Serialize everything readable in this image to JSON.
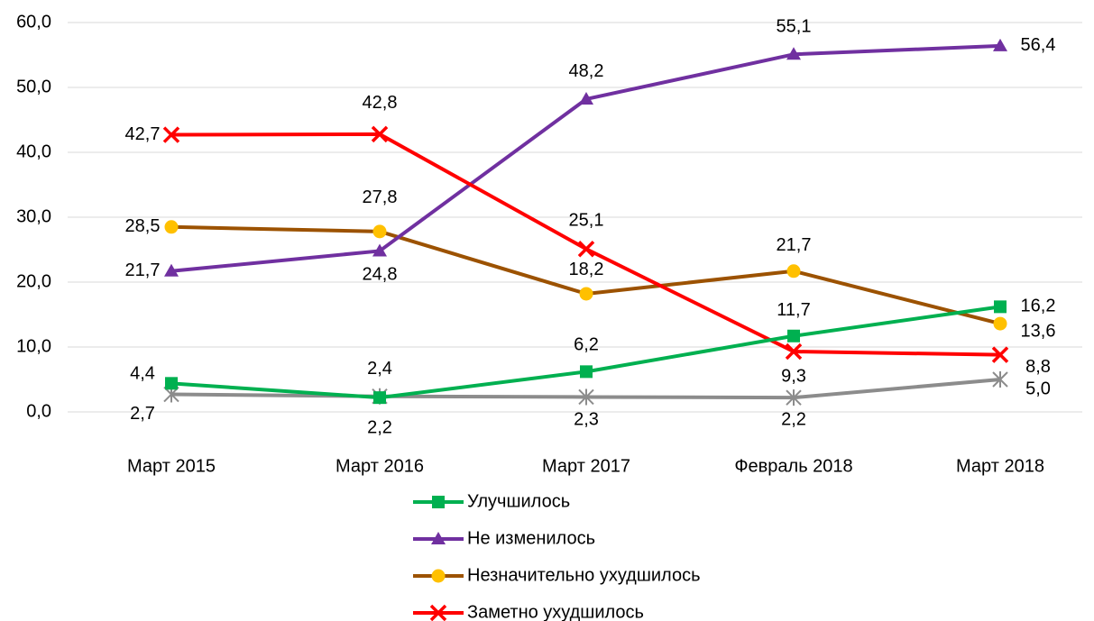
{
  "chart_data": {
    "type": "line",
    "categories": [
      "Март 2015",
      "Март 2016",
      "Март 2017",
      "Февраль 2018",
      "Март 2018"
    ],
    "series": [
      {
        "name": "Улучшилось",
        "color": "#00b050",
        "marker": "square",
        "marker_color": "#00b050",
        "values": [
          4.4,
          2.2,
          6.2,
          11.7,
          16.2
        ],
        "value_labels": [
          "4,4",
          "2,2",
          "6,2",
          "11,7",
          "16,2"
        ]
      },
      {
        "name": "Не изменилось",
        "color": "#7030a0",
        "marker": "triangle",
        "marker_color": "#7030a0",
        "values": [
          21.7,
          24.8,
          48.2,
          55.1,
          56.4
        ],
        "value_labels": [
          "21,7",
          "24,8",
          "48,2",
          "55,1",
          "56,4"
        ]
      },
      {
        "name": "Незначительно ухудшилось",
        "color": "#9c5200",
        "marker": "circle",
        "marker_color": "#ffc000",
        "values": [
          28.5,
          27.8,
          18.2,
          21.7,
          13.6
        ],
        "value_labels": [
          "28,5",
          "27,8",
          "18,2",
          "21,7",
          "13,6"
        ]
      },
      {
        "name": "Заметно ухудшилось",
        "color": "#ff0000",
        "marker": "x",
        "marker_color": "#ff0000",
        "values": [
          42.7,
          42.8,
          25.1,
          9.3,
          8.8
        ],
        "value_labels": [
          "42,7",
          "42,8",
          "25,1",
          "9,3",
          "8,8"
        ]
      },
      {
        "color": "#8c8c8c",
        "marker": "star",
        "marker_color": "#8c8c8c",
        "values": [
          2.7,
          2.4,
          2.3,
          2.2,
          5.0
        ],
        "value_labels": [
          "2,7",
          "2,4",
          "2,3",
          "2,2",
          "5,0"
        ]
      }
    ],
    "ylim": [
      0,
      60
    ],
    "yticks": [
      {
        "value": 0,
        "label": "0,0"
      },
      {
        "value": 10,
        "label": "10,0"
      },
      {
        "value": 20,
        "label": "20,0"
      },
      {
        "value": 30,
        "label": "30,0"
      },
      {
        "value": 40,
        "label": "40,0"
      },
      {
        "value": 50,
        "label": "50,0"
      },
      {
        "value": 60,
        "label": "60,0"
      }
    ],
    "grid": true,
    "legend": "bottom"
  }
}
